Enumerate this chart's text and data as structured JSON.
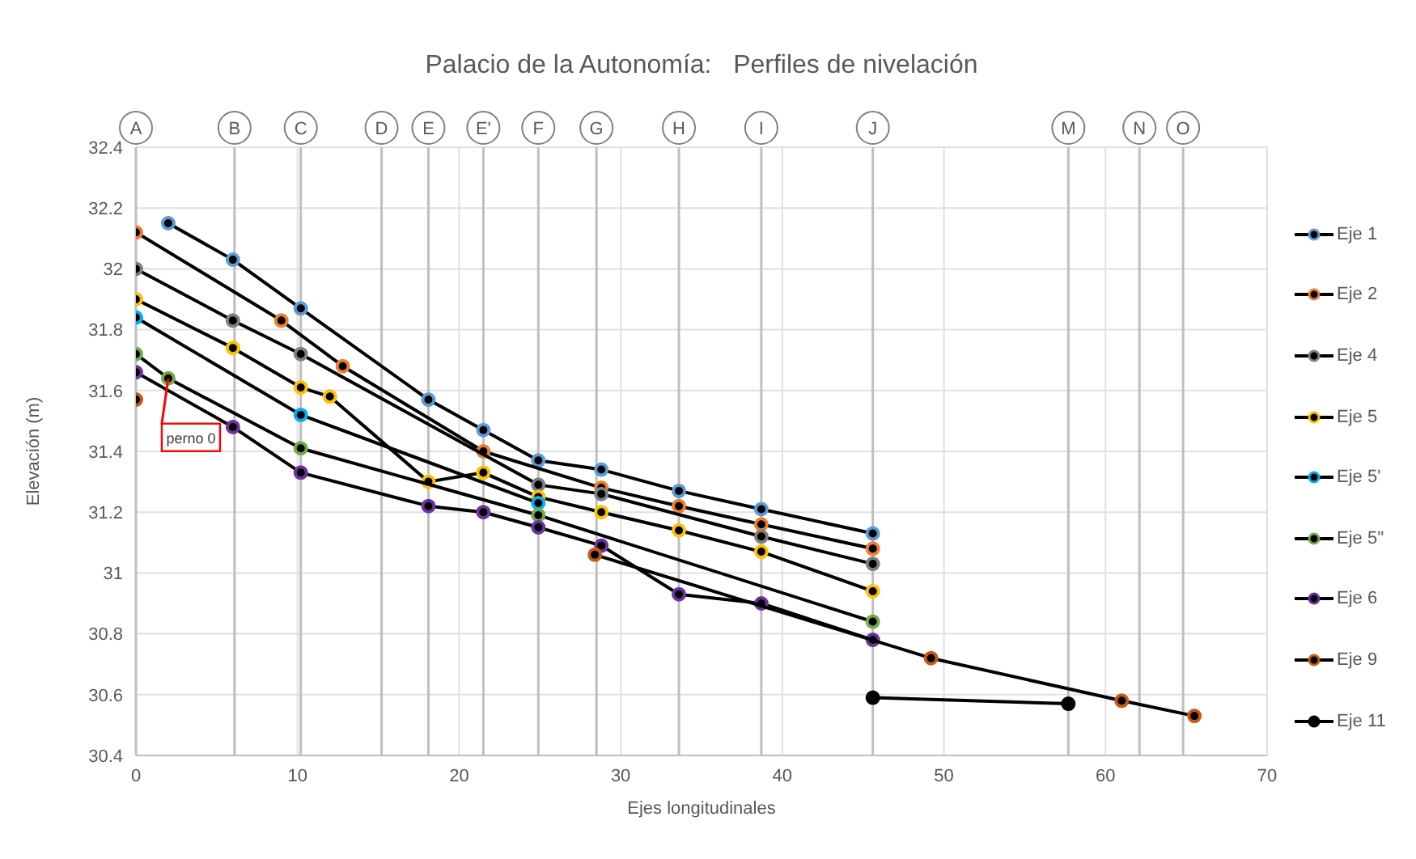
{
  "chart_data": {
    "type": "line",
    "title": "Palacio de la Autonomía:   Perfiles de nivelación",
    "xlabel": "Ejes longitudinales",
    "ylabel": "Elevación (m)",
    "xlim": [
      0,
      70
    ],
    "xticks": [
      0,
      10,
      20,
      30,
      40,
      50,
      60,
      70
    ],
    "ylim": [
      30.4,
      32.4
    ],
    "yticks": [
      30.4,
      30.6,
      30.8,
      31,
      31.2,
      31.4,
      31.6,
      31.8,
      32,
      32.2,
      32.4
    ],
    "grid": true,
    "legend": "right",
    "marker": "circle",
    "line_style": "solid",
    "series": [
      {
        "name": "Eje 1",
        "color": "#5b9bd5",
        "x": [
          2,
          6,
          10.2,
          18.1,
          21.5,
          24.9,
          28.8,
          33.6,
          38.7,
          45.6
        ],
        "values": [
          32.15,
          32.03,
          31.87,
          31.57,
          31.47,
          31.37,
          31.34,
          31.27,
          31.21,
          31.13
        ]
      },
      {
        "name": "Eje 2",
        "color": "#ed7d31",
        "x": [
          0,
          9,
          12.8,
          21.5,
          28.8,
          33.6,
          38.7,
          45.6
        ],
        "values": [
          32.12,
          31.83,
          31.68,
          31.4,
          31.28,
          31.22,
          31.16,
          31.08
        ]
      },
      {
        "name": "Eje 4",
        "color": "#7f7f7f",
        "x": [
          0,
          6,
          10.2,
          24.9,
          28.8,
          38.7,
          45.6
        ],
        "values": [
          32,
          31.83,
          31.72,
          31.29,
          31.26,
          31.12,
          31.03
        ]
      },
      {
        "name": "Eje 5",
        "color": "#ffc000",
        "x": [
          0,
          6,
          10.2,
          12,
          18.1,
          21.5,
          24.9,
          28.8,
          33.6,
          38.7,
          45.6
        ],
        "values": [
          31.9,
          31.74,
          31.61,
          31.58,
          31.3,
          31.33,
          31.25,
          31.2,
          31.14,
          31.07,
          30.94
        ]
      },
      {
        "name": "Eje 5'",
        "color": "#00b0f0",
        "x": [
          0,
          10.2,
          24.9
        ],
        "values": [
          31.84,
          31.52,
          31.23
        ]
      },
      {
        "name": "Eje 5''",
        "color": "#70ad47",
        "x": [
          0,
          2,
          10.2,
          24.9,
          45.6
        ],
        "values": [
          31.72,
          31.64,
          31.41,
          31.19,
          30.84
        ]
      },
      {
        "name": "Eje 6",
        "color": "#7030a0",
        "x": [
          0,
          6,
          10.2,
          18.1,
          21.5,
          24.9,
          28.8,
          33.6,
          38.7,
          45.6
        ],
        "values": [
          31.66,
          31.48,
          31.33,
          31.22,
          31.2,
          31.15,
          31.09,
          30.93,
          30.9,
          30.78
        ]
      },
      {
        "name": "Eje 9",
        "color": "#c55a11",
        "x": [
          0,
          null,
          28.4,
          49.2,
          61,
          65.5
        ],
        "values": [
          31.57,
          null,
          31.06,
          30.72,
          30.58,
          30.53
        ]
      },
      {
        "name": "Eje 11",
        "color": "#000000",
        "x": [
          45.6,
          57.7
        ],
        "values": [
          30.59,
          30.57
        ]
      }
    ],
    "ref_lines": [
      {
        "axis": "x",
        "value": 0,
        "label": "A",
        "color": "#bfbfbf"
      },
      {
        "axis": "x",
        "value": 6.1,
        "label": "B",
        "color": "#bfbfbf"
      },
      {
        "axis": "x",
        "value": 10.2,
        "label": "C",
        "color": "#bfbfbf"
      },
      {
        "axis": "x",
        "value": 15.2,
        "label": "D",
        "color": "#bfbfbf"
      },
      {
        "axis": "x",
        "value": 18.1,
        "label": "E",
        "color": "#bfbfbf"
      },
      {
        "axis": "x",
        "value": 21.5,
        "label": "E'",
        "color": "#bfbfbf"
      },
      {
        "axis": "x",
        "value": 24.9,
        "label": "F",
        "color": "#bfbfbf"
      },
      {
        "axis": "x",
        "value": 28.5,
        "label": "G",
        "color": "#bfbfbf"
      },
      {
        "axis": "x",
        "value": 33.6,
        "label": "H",
        "color": "#bfbfbf"
      },
      {
        "axis": "x",
        "value": 38.7,
        "label": "I",
        "color": "#bfbfbf"
      },
      {
        "axis": "x",
        "value": 45.6,
        "label": "J",
        "color": "#bfbfbf"
      },
      {
        "axis": "x",
        "value": 57.7,
        "label": "M",
        "color": "#bfbfbf"
      },
      {
        "axis": "x",
        "value": 62.1,
        "label": "N",
        "color": "#bfbfbf"
      },
      {
        "axis": "x",
        "value": 64.8,
        "label": "O",
        "color": "#bfbfbf"
      }
    ],
    "annotations": [
      {
        "text": "perno 0",
        "x": 2,
        "y": 31.64
      }
    ]
  }
}
